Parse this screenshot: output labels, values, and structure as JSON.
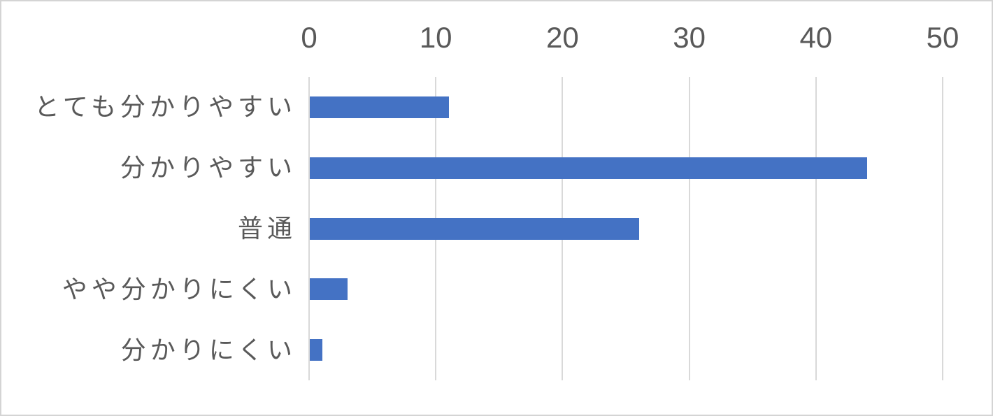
{
  "chart_data": {
    "type": "bar",
    "orientation": "horizontal",
    "title": "",
    "xlabel": "",
    "ylabel": "",
    "categories": [
      "とても分かりやすい",
      "分かりやすい",
      "普通",
      "やや分かりにくい",
      "分かりにくい"
    ],
    "values": [
      11,
      44,
      26,
      3,
      1
    ],
    "xlim": [
      0,
      50
    ],
    "xticks": [
      0,
      10,
      20,
      30,
      40,
      50
    ],
    "grid": true,
    "legend": "none",
    "bar_color": "#4472C4",
    "gridline_color": "#D9D9D9",
    "text_color": "#595959",
    "border_color": "#D4D4D4"
  }
}
